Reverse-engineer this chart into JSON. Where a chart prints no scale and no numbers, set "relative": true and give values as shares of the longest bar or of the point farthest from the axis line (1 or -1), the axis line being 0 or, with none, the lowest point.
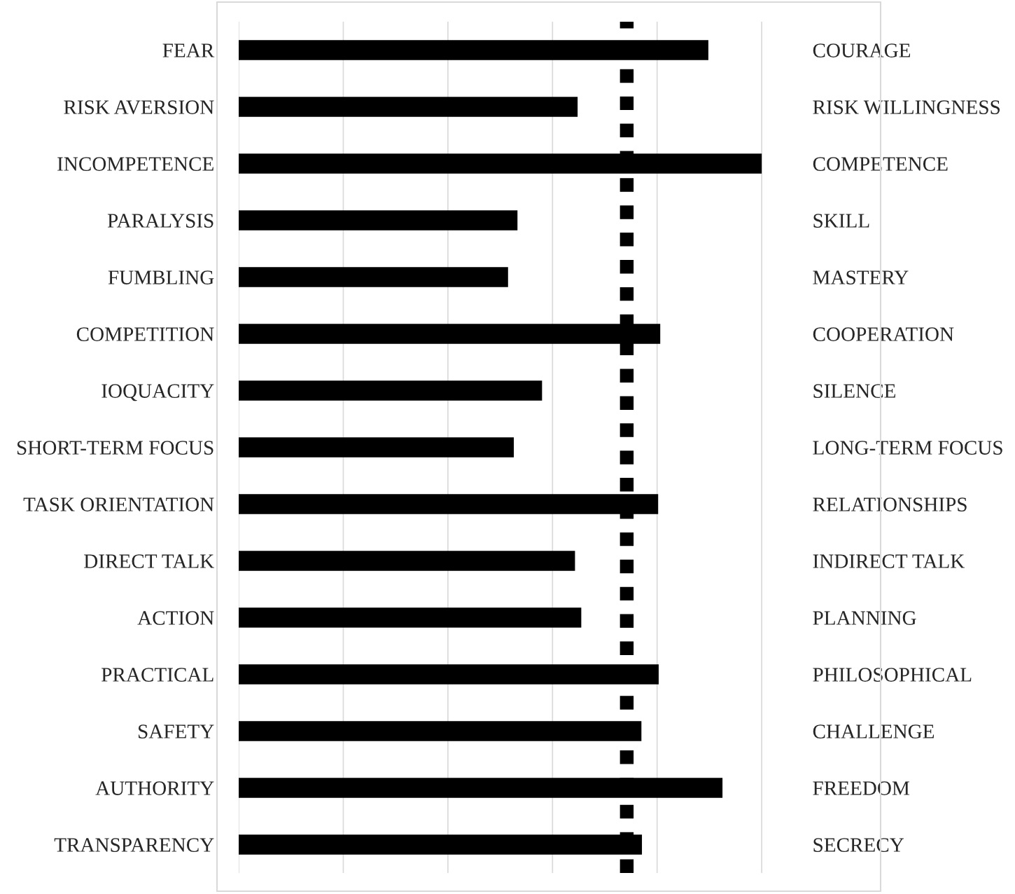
{
  "chart_data": {
    "type": "bar",
    "orientation": "horizontal",
    "relative": true,
    "categories": [
      "FEAR",
      "RISK AVERSION",
      "INCOMPETENCE",
      "PARALYSIS",
      "FUMBLING",
      "COMPETITION",
      "IOQUACITY",
      "SHORT-TERM FOCUS",
      "TASK ORIENTATION",
      "DIRECT TALK",
      "ACTION",
      "PRACTICAL",
      "SAFETY",
      "AUTHORITY",
      "TRANSPARENCY"
    ],
    "y2_categories": [
      "COURAGE",
      "RISK WILLINGNESS",
      "COMPETENCE",
      "SKILL",
      "MASTERY",
      "COOPERATION",
      "SILENCE",
      "LONG-TERM FOCUS",
      "RELATIONSHIPS",
      "INDIRECT TALK",
      "PLANNING",
      "PHILOSOPHICAL",
      "CHALLENGE",
      "FREEDOM",
      "SECRECY"
    ],
    "series": [
      {
        "color": "#000000",
        "values": [
          0.898,
          0.648,
          1,
          0.533,
          0.515,
          0.806,
          0.58,
          0.526,
          0.802,
          0.643,
          0.655,
          0.803,
          0.77,
          0.925,
          0.771
        ]
      }
    ],
    "grid": "x",
    "ref_lines": [
      {
        "axis": "x",
        "value": 0.742,
        "color": "#000000",
        "line_style": "dotted"
      }
    ]
  }
}
